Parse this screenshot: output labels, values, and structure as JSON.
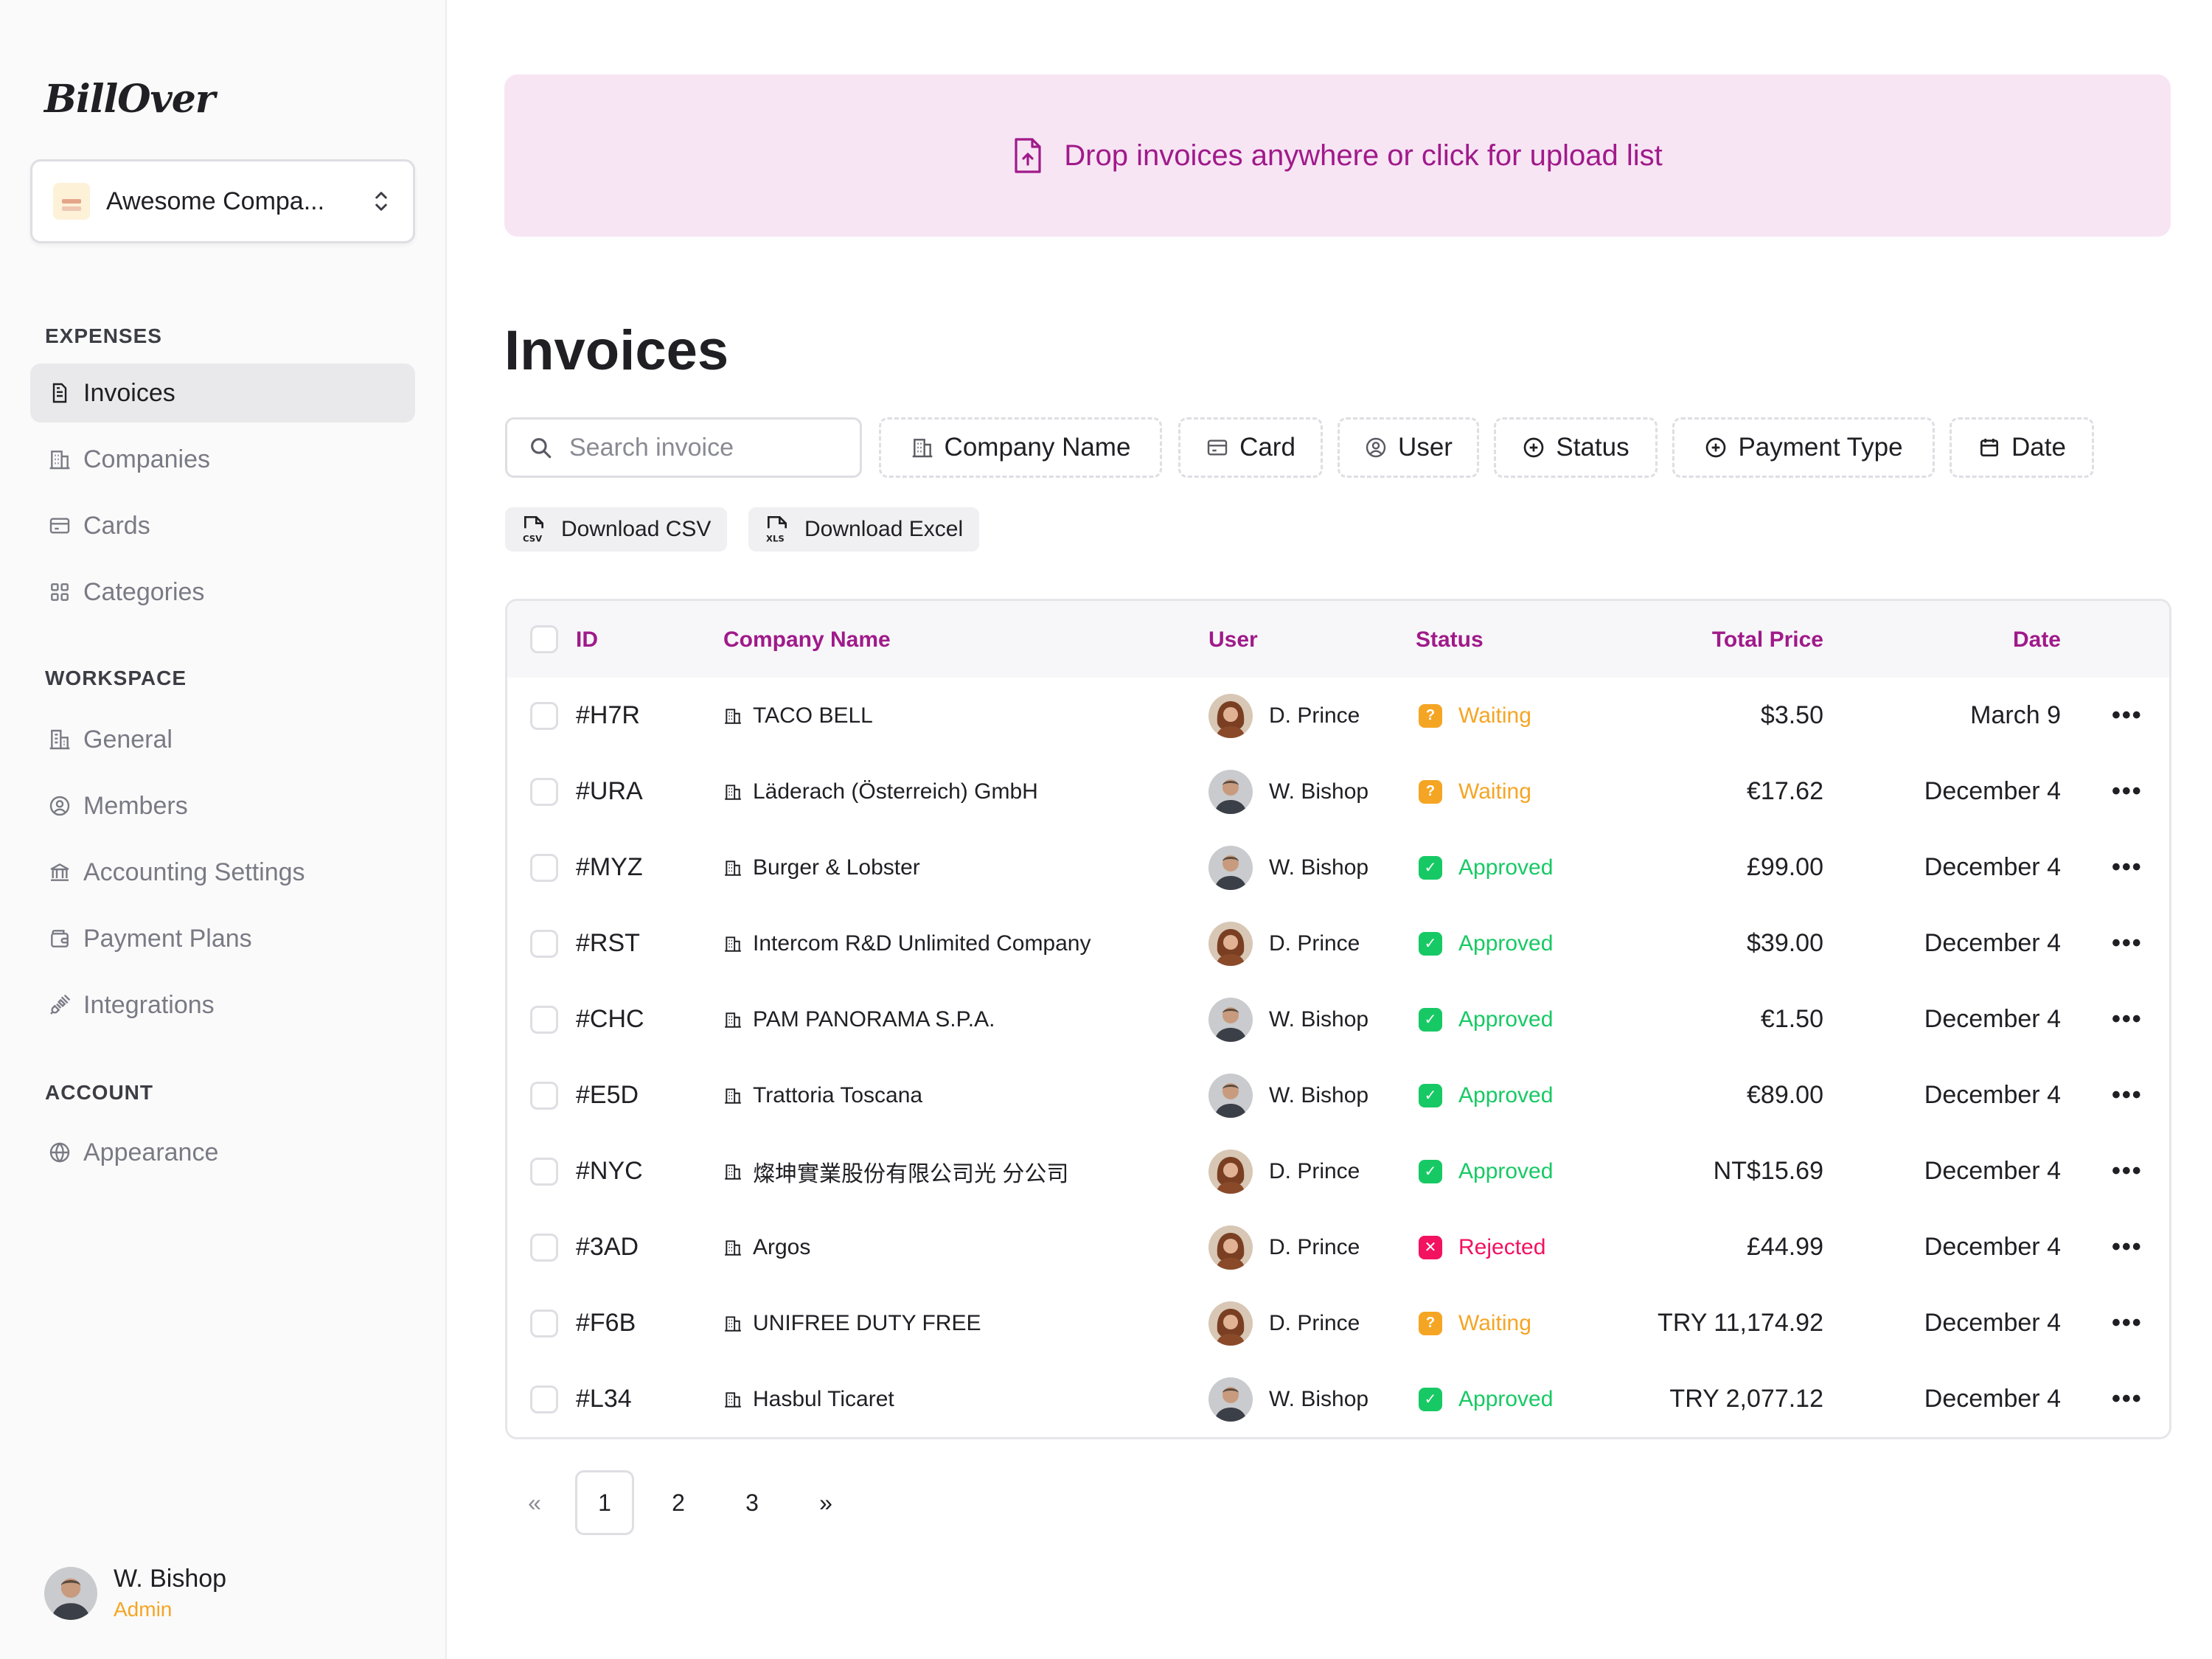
{
  "app": {
    "name": "BillOver"
  },
  "sidebar": {
    "company": {
      "name": "Awesome Compa..."
    },
    "sections": [
      {
        "title": "EXPENSES",
        "items": [
          {
            "label": "Invoices",
            "icon": "invoice-icon",
            "active": true
          },
          {
            "label": "Companies",
            "icon": "building-icon"
          },
          {
            "label": "Cards",
            "icon": "card-icon"
          },
          {
            "label": "Categories",
            "icon": "grid-icon"
          }
        ]
      },
      {
        "title": "WORKSPACE",
        "items": [
          {
            "label": "General",
            "icon": "office-icon"
          },
          {
            "label": "Members",
            "icon": "user-circle-icon"
          },
          {
            "label": "Accounting Settings",
            "icon": "bank-icon"
          },
          {
            "label": "Payment Plans",
            "icon": "wallet-icon"
          },
          {
            "label": "Integrations",
            "icon": "plug-icon"
          }
        ]
      },
      {
        "title": "ACCOUNT",
        "items": [
          {
            "label": "Appearance",
            "icon": "globe-icon"
          }
        ]
      }
    ],
    "user": {
      "name": "W. Bishop",
      "role": "Admin"
    }
  },
  "upload": {
    "label": "Drop invoices anywhere or click for upload list"
  },
  "page": {
    "title": "Invoices"
  },
  "search": {
    "placeholder": "Search invoice"
  },
  "filters": [
    {
      "label": "Company Name",
      "icon": "building-icon"
    },
    {
      "label": "Card",
      "icon": "card-icon"
    },
    {
      "label": "User",
      "icon": "user-circle-icon"
    },
    {
      "label": "Status",
      "icon": "plus-circle-icon"
    },
    {
      "label": "Payment Type",
      "icon": "plus-circle-icon"
    },
    {
      "label": "Date",
      "icon": "calendar-icon"
    }
  ],
  "downloads": {
    "csv": "Download CSV",
    "excel": "Download Excel"
  },
  "table": {
    "columns": {
      "id": "ID",
      "company": "Company Name",
      "user": "User",
      "status": "Status",
      "total": "Total Price",
      "date": "Date"
    },
    "rows": [
      {
        "id": "#H7R",
        "company": "TACO BELL",
        "user": "D. Prince",
        "status": "Waiting",
        "total": "$3.50",
        "date": "March 9"
      },
      {
        "id": "#URA",
        "company": "Läderach (Österreich) GmbH",
        "user": "W. Bishop",
        "status": "Waiting",
        "total": "€17.62",
        "date": "December 4"
      },
      {
        "id": "#MYZ",
        "company": "Burger & Lobster",
        "user": "W. Bishop",
        "status": "Approved",
        "total": "£99.00",
        "date": "December 4"
      },
      {
        "id": "#RST",
        "company": "Intercom R&D Unlimited Company",
        "user": "D. Prince",
        "status": "Approved",
        "total": "$39.00",
        "date": "December 4"
      },
      {
        "id": "#CHC",
        "company": "PAM PANORAMA S.P.A.",
        "user": "W. Bishop",
        "status": "Approved",
        "total": "€1.50",
        "date": "December 4"
      },
      {
        "id": "#E5D",
        "company": "Trattoria Toscana",
        "user": "W. Bishop",
        "status": "Approved",
        "total": "€89.00",
        "date": "December 4"
      },
      {
        "id": "#NYC",
        "company": "燦坤實業股份有限公司光 分公司",
        "user": "D. Prince",
        "status": "Approved",
        "total": "NT$15.69",
        "date": "December 4"
      },
      {
        "id": "#3AD",
        "company": "Argos",
        "user": "D. Prince",
        "status": "Rejected",
        "total": "£44.99",
        "date": "December 4"
      },
      {
        "id": "#F6B",
        "company": "UNIFREE DUTY FREE",
        "user": "D. Prince",
        "status": "Waiting",
        "total": "TRY 11,174.92",
        "date": "December 4"
      },
      {
        "id": "#L34",
        "company": "Hasbul Ticaret",
        "user": "W. Bishop",
        "status": "Approved",
        "total": "TRY 2,077.12",
        "date": "December 4"
      }
    ]
  },
  "pagination": {
    "prev": "«",
    "pages": [
      "1",
      "2",
      "3"
    ],
    "next": "»",
    "current": "1"
  },
  "colors": {
    "accent": "#a01a8a",
    "waiting": "#f5a524",
    "approved": "#17c964",
    "rejected": "#f31260",
    "dropzone": "#f7e5f4"
  }
}
